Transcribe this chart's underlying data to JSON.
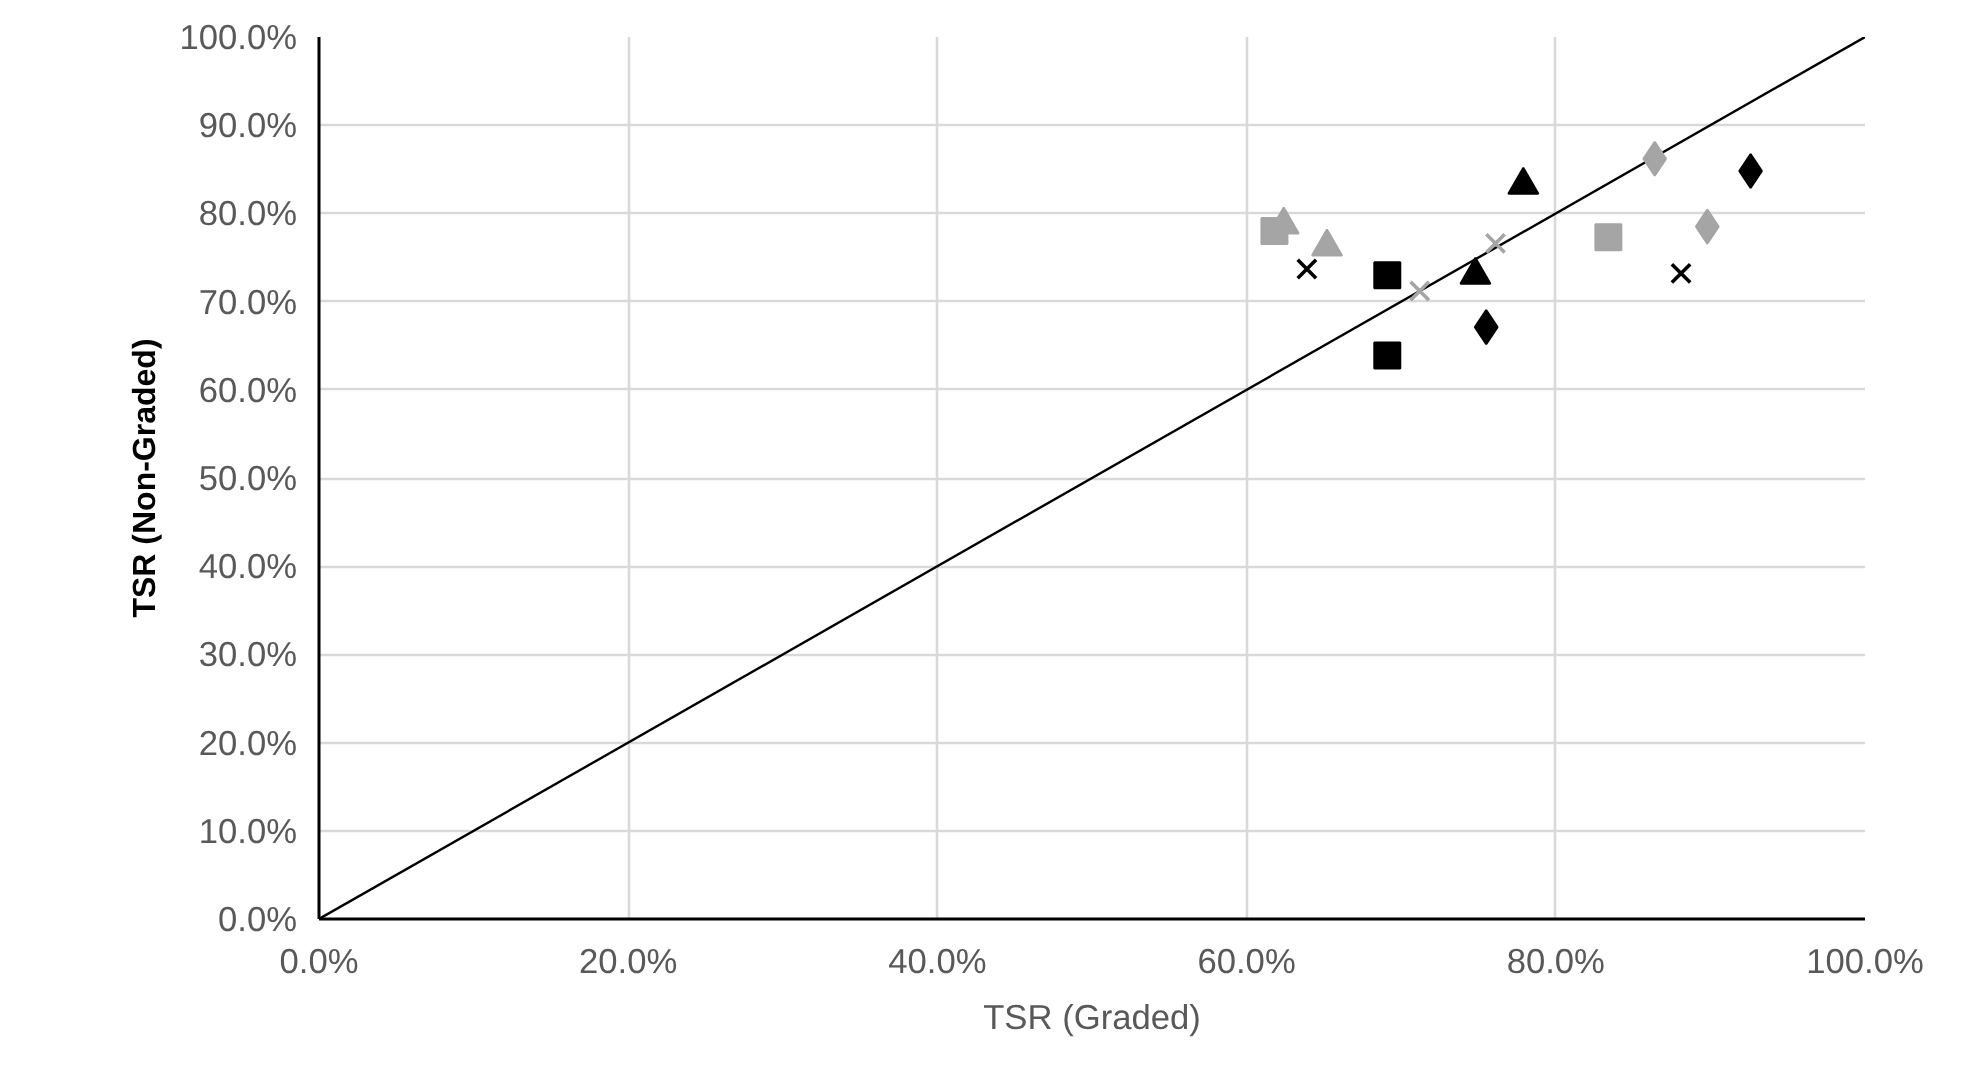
{
  "chart_data": {
    "type": "scatter",
    "xlabel": "TSR (Graded)",
    "ylabel": "TSR (Non-Graded)",
    "xlim": [
      0,
      100
    ],
    "ylim": [
      0,
      100
    ],
    "xticks": [
      {
        "value": 0,
        "label": "0.0%"
      },
      {
        "value": 20,
        "label": "20.0%"
      },
      {
        "value": 40,
        "label": "40.0%"
      },
      {
        "value": 60,
        "label": "60.0%"
      },
      {
        "value": 80,
        "label": "80.0%"
      },
      {
        "value": 100,
        "label": "100.0%"
      }
    ],
    "yticks": [
      {
        "value": 0,
        "label": "0.0%"
      },
      {
        "value": 10,
        "label": "10.0%"
      },
      {
        "value": 20,
        "label": "20.0%"
      },
      {
        "value": 30,
        "label": "30.0%"
      },
      {
        "value": 40,
        "label": "40.0%"
      },
      {
        "value": 50,
        "label": "50.0%"
      },
      {
        "value": 60,
        "label": "60.0%"
      },
      {
        "value": 70,
        "label": "70.0%"
      },
      {
        "value": 80,
        "label": "80.0%"
      },
      {
        "value": 90,
        "label": "90.0%"
      },
      {
        "value": 100,
        "label": "100.0%"
      }
    ],
    "grid": true,
    "series": [
      {
        "type": "line",
        "marker": "none",
        "color": "#000000",
        "x": [
          0,
          100
        ],
        "values": [
          0,
          100
        ]
      },
      {
        "marker": "diamond",
        "color": "#000000",
        "x": [
          75.5,
          92.6
        ],
        "values": [
          67.1,
          84.8
        ]
      },
      {
        "marker": "diamond",
        "color": "#a5a5a5",
        "x": [
          86.4,
          89.8
        ],
        "values": [
          86.2,
          78.5
        ]
      },
      {
        "marker": "square",
        "color": "#000000",
        "x": [
          69.1,
          69.1
        ],
        "values": [
          73.0,
          63.9
        ]
      },
      {
        "marker": "square",
        "color": "#a5a5a5",
        "x": [
          61.8,
          83.4
        ],
        "values": [
          78.0,
          77.3
        ]
      },
      {
        "marker": "triangle",
        "color": "#000000",
        "x": [
          77.9,
          74.8
        ],
        "values": [
          83.2,
          73.0
        ]
      },
      {
        "marker": "triangle",
        "color": "#a5a5a5",
        "x": [
          62.4,
          65.2
        ],
        "values": [
          78.7,
          76.2
        ]
      },
      {
        "marker": "cross",
        "color": "#000000",
        "x": [
          63.9,
          88.1
        ],
        "values": [
          73.7,
          73.2
        ]
      },
      {
        "marker": "cross",
        "color": "#a5a5a5",
        "x": [
          71.2,
          76.1
        ],
        "values": [
          71.2,
          76.6
        ]
      }
    ]
  }
}
